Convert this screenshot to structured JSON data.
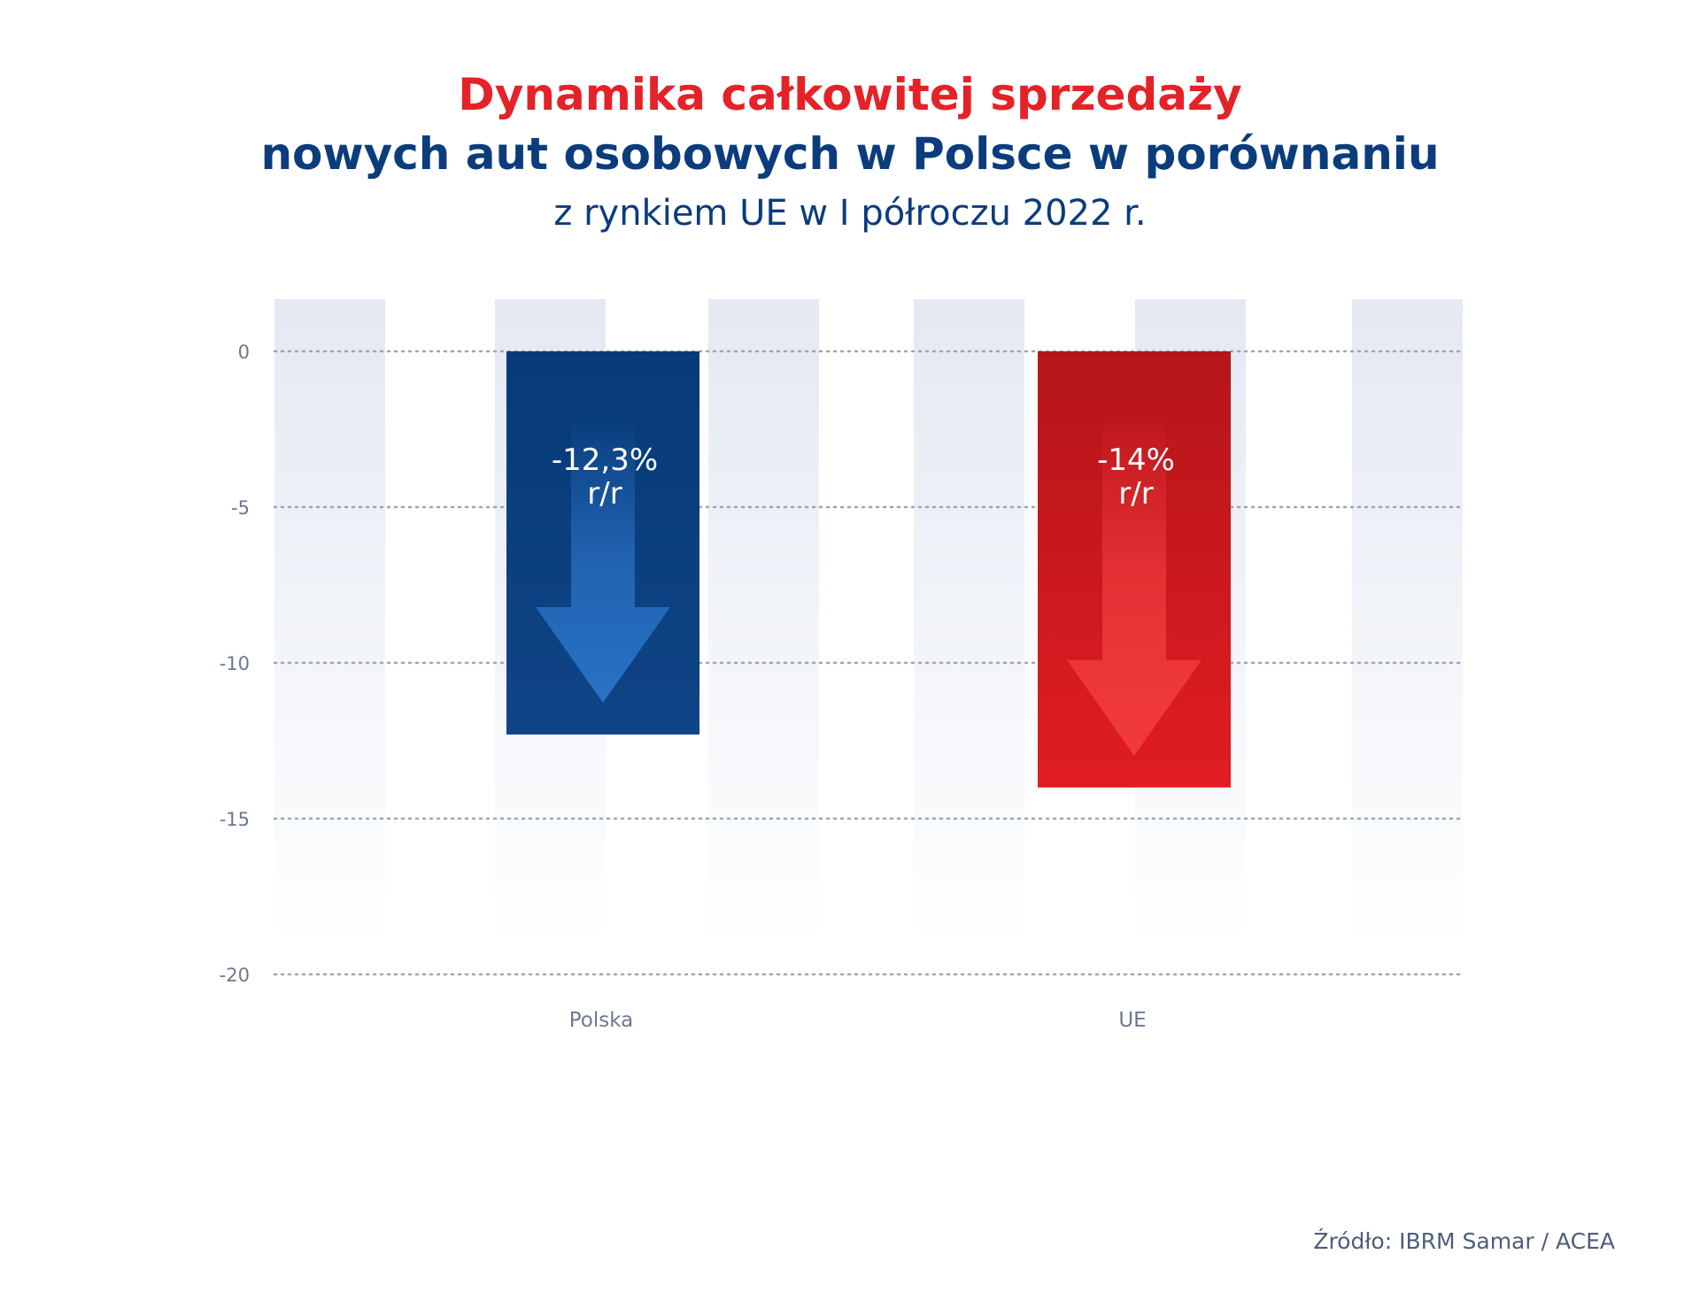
{
  "title_line1": "Dynamika całkowitej sprzedaży",
  "title_line2": "nowych aut osobowych w Polsce w porównaniu",
  "title_line3": "z rynkiem UE w I półroczu 2022 r.",
  "source": "Źródło: IBRM Samar / ACEA",
  "chart_data": {
    "type": "bar",
    "categories": [
      "Polska",
      "UE"
    ],
    "values": [
      -12.3,
      -14
    ],
    "data_labels": [
      [
        "-12,3%",
        "r/r"
      ],
      [
        "-14%",
        "r/r"
      ]
    ],
    "ylim": [
      -20,
      0
    ],
    "yticks": [
      0,
      -5,
      -10,
      -15,
      -20
    ],
    "grid": "dotted horizontal",
    "colors": {
      "Polska": "#0b3c7c",
      "UE": "#d81e23",
      "arrow_Polska": "#2870c4",
      "arrow_UE": "#ee3a3c",
      "background_stripes": "#e6ebf3"
    }
  }
}
